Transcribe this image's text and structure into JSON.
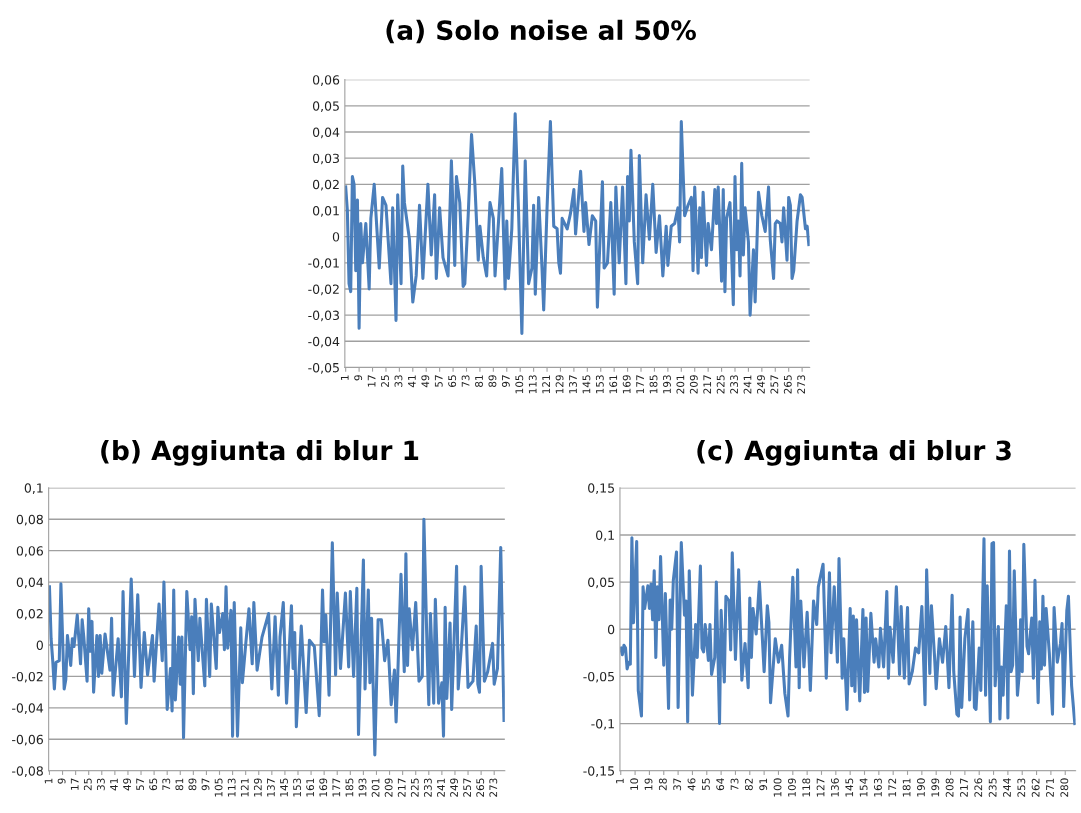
{
  "chart_data": [
    {
      "type": "line",
      "title": "(a) Solo noise al 50%",
      "color": "#4a7ebb",
      "grid": "y",
      "xlim": [
        0.5,
        277.5
      ],
      "xticks": [
        1,
        9,
        17,
        25,
        33,
        41,
        49,
        57,
        65,
        73,
        81,
        89,
        97,
        105,
        113,
        121,
        129,
        137,
        145,
        153,
        161,
        169,
        177,
        185,
        193,
        201,
        209,
        217,
        225,
        233,
        241,
        249,
        257,
        265,
        273
      ],
      "ylim": [
        -0.05,
        0.06
      ],
      "yticks": [
        {
          "value": 0.06,
          "label": "0,06"
        },
        {
          "value": 0.05,
          "label": "0,05"
        },
        {
          "value": 0.04,
          "label": "0,04"
        },
        {
          "value": 0.03,
          "label": "0,03"
        },
        {
          "value": 0.02,
          "label": "0,02"
        },
        {
          "value": 0.01,
          "label": "0,01"
        },
        {
          "value": 0,
          "label": "0"
        },
        {
          "value": -0.01,
          "label": "-0,01"
        },
        {
          "value": -0.02,
          "label": "-0,02"
        },
        {
          "value": -0.03,
          "label": "-0,03"
        },
        {
          "value": -0.04,
          "label": "-0,04"
        },
        {
          "value": -0.05,
          "label": "-0,05"
        }
      ],
      "x": [
        1,
        2,
        3,
        4,
        5,
        6,
        7,
        8,
        9,
        10,
        11,
        13,
        15,
        16,
        18,
        21,
        23,
        25,
        28,
        29,
        31,
        32,
        34,
        35,
        36,
        39,
        41,
        43,
        45,
        47,
        50,
        52,
        54,
        55,
        57,
        59,
        62,
        64,
        66,
        67,
        69,
        71,
        72,
        74,
        76,
        78,
        80,
        81,
        83,
        85,
        87,
        89,
        90,
        92,
        94,
        96,
        97,
        98,
        100,
        102,
        104,
        106,
        108,
        110,
        112,
        113,
        114,
        116,
        118,
        119,
        121,
        123,
        125,
        127,
        128,
        129,
        130,
        133,
        135,
        137,
        138,
        141,
        143,
        144,
        146,
        148,
        150,
        151,
        152,
        154,
        155,
        157,
        159,
        161,
        162,
        164,
        166,
        168,
        169,
        170,
        171,
        173,
        175,
        176,
        178,
        180,
        182,
        184,
        186,
        188,
        190,
        192,
        193,
        195,
        197,
        199,
        200,
        201,
        203,
        205,
        207,
        208,
        209,
        211,
        212,
        213,
        214,
        216,
        217,
        219,
        221,
        222,
        223,
        225,
        226,
        227,
        228,
        230,
        232,
        233,
        234,
        235,
        236,
        237,
        238,
        239,
        241,
        242,
        244,
        245,
        247,
        249,
        251,
        253,
        254,
        256,
        257,
        258,
        260,
        261,
        262,
        264,
        265,
        266,
        267,
        268,
        270,
        272,
        273,
        275,
        276,
        277
      ],
      "values": [
        0.019,
        0.01,
        -0.018,
        -0.021,
        0.023,
        0.02,
        -0.013,
        0.014,
        -0.035,
        0.005,
        -0.01,
        0.005,
        -0.02,
        0.007,
        0.02,
        -0.012,
        0.015,
        0.012,
        -0.018,
        0.011,
        -0.032,
        0.016,
        -0.018,
        0.027,
        0.013,
        -0.001,
        -0.025,
        -0.015,
        0.012,
        -0.016,
        0.02,
        -0.007,
        0.016,
        -0.016,
        0.011,
        -0.008,
        -0.015,
        0.029,
        -0.011,
        0.023,
        0.013,
        -0.019,
        -0.018,
        0.008,
        0.039,
        0.02,
        -0.009,
        0.004,
        -0.008,
        -0.015,
        0.013,
        0.007,
        -0.015,
        0.005,
        0.026,
        -0.02,
        0.006,
        -0.016,
        0.003,
        0.047,
        0.01,
        -0.037,
        0.029,
        -0.018,
        -0.012,
        0.012,
        -0.022,
        0.015,
        -0.012,
        -0.028,
        0.011,
        0.044,
        0.004,
        0.003,
        -0.01,
        -0.014,
        0.007,
        0.003,
        0.009,
        0.018,
        0.001,
        0.025,
        0.002,
        0.013,
        -0.003,
        0.008,
        0.006,
        -0.027,
        -0.01,
        0.021,
        -0.012,
        -0.01,
        0.013,
        -0.022,
        0.019,
        -0.01,
        0.019,
        -0.018,
        0.023,
        0.006,
        0.033,
        -0.002,
        -0.018,
        0.031,
        -0.01,
        0.016,
        -0.001,
        0.02,
        -0.006,
        0.008,
        -0.015,
        0.004,
        -0.011,
        0.004,
        0.005,
        0.011,
        -0.002,
        0.044,
        0.008,
        0.012,
        0.015,
        -0.013,
        0.019,
        -0.014,
        0.011,
        -0.008,
        0.017,
        -0.011,
        0.005,
        -0.005,
        0.018,
        0.005,
        0.019,
        -0.017,
        0.018,
        -0.021,
        0.007,
        0.013,
        -0.026,
        0.023,
        -0.005,
        0.006,
        -0.015,
        0.028,
        -0.007,
        0.011,
        -0.002,
        -0.03,
        -0.005,
        -0.025,
        0.017,
        0.008,
        0.002,
        0.019,
        -0.001,
        -0.016,
        0.005,
        0.006,
        0.005,
        -0.002,
        0.011,
        -0.009,
        0.015,
        0.012,
        -0.016,
        -0.013,
        0.006,
        0.016,
        0.015,
        0.003,
        0.004,
        -0.003
      ]
    },
    {
      "type": "line",
      "title": "(b) Aggiunta di blur 1",
      "color": "#4a7ebb",
      "grid": "y",
      "xlim": [
        0.5,
        279.5
      ],
      "xticks": [
        1,
        9,
        17,
        25,
        33,
        41,
        49,
        57,
        65,
        73,
        81,
        89,
        97,
        105,
        113,
        121,
        129,
        137,
        145,
        153,
        161,
        169,
        177,
        185,
        193,
        201,
        209,
        217,
        225,
        233,
        241,
        249,
        257,
        265,
        273
      ],
      "ylim": [
        -0.08,
        0.1
      ],
      "yticks": [
        {
          "value": 0.1,
          "label": "0,1"
        },
        {
          "value": 0.08,
          "label": "0,08"
        },
        {
          "value": 0.06,
          "label": "0,06"
        },
        {
          "value": 0.04,
          "label": "0,04"
        },
        {
          "value": 0.02,
          "label": "0,02"
        },
        {
          "value": 0,
          "label": "0"
        },
        {
          "value": -0.02,
          "label": "-0,02"
        },
        {
          "value": -0.04,
          "label": "-0,04"
        },
        {
          "value": -0.06,
          "label": "-0,06"
        },
        {
          "value": -0.08,
          "label": "-0,08"
        }
      ],
      "x": [
        1,
        2,
        3,
        4,
        5,
        7,
        8,
        10,
        11,
        12,
        14,
        15,
        16,
        18,
        20,
        21,
        22,
        24,
        25,
        26,
        27,
        28,
        30,
        31,
        32,
        33,
        35,
        38,
        39,
        40,
        43,
        45,
        46,
        48,
        51,
        53,
        55,
        57,
        59,
        61,
        64,
        65,
        68,
        70,
        71,
        73,
        75,
        76,
        77,
        78,
        80,
        81,
        82,
        83,
        85,
        87,
        88,
        89,
        90,
        92,
        93,
        96,
        97,
        99,
        100,
        103,
        104,
        105,
        107,
        108,
        109,
        110,
        112,
        113,
        114,
        116,
        118,
        119,
        121,
        123,
        125,
        126,
        128,
        131,
        135,
        137,
        139,
        141,
        142,
        144,
        146,
        149,
        150,
        151,
        152,
        155,
        158,
        160,
        163,
        166,
        168,
        169,
        170,
        172,
        174,
        176,
        177,
        179,
        182,
        184,
        185,
        187,
        189,
        190,
        193,
        194,
        196,
        197,
        198,
        200,
        202,
        204,
        206,
        208,
        210,
        212,
        213,
        214,
        216,
        218,
        219,
        220,
        221,
        223,
        225,
        227,
        229,
        230,
        232,
        233,
        234,
        236,
        237,
        239,
        241,
        242,
        243,
        244,
        246,
        247,
        250,
        251,
        253,
        255,
        257,
        260,
        262,
        263,
        264,
        265,
        267,
        269,
        272,
        273,
        275,
        277,
        279
      ],
      "values": [
        0.037,
        0.004,
        -0.01,
        -0.028,
        -0.011,
        -0.01,
        0.039,
        -0.028,
        -0.022,
        0.006,
        -0.013,
        0.004,
        -0.001,
        0.019,
        -0.012,
        0.016,
        0.005,
        -0.023,
        0.023,
        -0.004,
        0.015,
        -0.03,
        0.006,
        -0.02,
        0.006,
        -0.018,
        0.007,
        -0.016,
        0.017,
        -0.032,
        0.004,
        -0.033,
        0.034,
        -0.05,
        0.042,
        -0.02,
        0.032,
        -0.027,
        0.008,
        -0.019,
        0.006,
        -0.023,
        0.026,
        -0.01,
        0.04,
        -0.041,
        -0.015,
        -0.042,
        0.035,
        -0.035,
        0.005,
        -0.025,
        0.005,
        -0.059,
        0.034,
        -0.003,
        0.018,
        -0.031,
        0.029,
        -0.01,
        0.017,
        -0.026,
        0.029,
        -0.02,
        0.026,
        -0.015,
        0.024,
        0.008,
        0.02,
        -0.003,
        0.037,
        -0.002,
        0.022,
        -0.058,
        0.027,
        -0.058,
        0.011,
        -0.024,
        0,
        0.023,
        -0.012,
        0.027,
        -0.016,
        0.005,
        0.02,
        -0.028,
        0.018,
        -0.032,
        0.005,
        0.027,
        -0.037,
        0.025,
        -0.015,
        0.008,
        -0.052,
        0.012,
        -0.043,
        0.003,
        -0.001,
        -0.045,
        0.035,
        0.002,
        0.019,
        -0.032,
        0.065,
        -0.019,
        0.033,
        -0.015,
        0.033,
        -0.014,
        0.034,
        -0.02,
        0.036,
        -0.057,
        0.054,
        -0.028,
        0.035,
        -0.024,
        0.017,
        -0.07,
        0.016,
        0.016,
        -0.01,
        0.003,
        -0.038,
        -0.016,
        -0.049,
        -0.02,
        0.045,
        -0.017,
        0.058,
        -0.013,
        0.023,
        -0.003,
        0.027,
        -0.023,
        -0.02,
        0.08,
        -0.005,
        -0.038,
        0.02,
        -0.037,
        0.029,
        -0.037,
        -0.024,
        -0.058,
        0.024,
        -0.034,
        0.014,
        -0.041,
        0.05,
        -0.028,
        0,
        0.037,
        -0.027,
        -0.023,
        0.012,
        -0.025,
        -0.03,
        0.05,
        -0.023,
        -0.017,
        0.001,
        -0.025,
        -0.015,
        0.062,
        -0.048
      ]
    },
    {
      "type": "line",
      "title": "(c) Aggiunta di blur 3",
      "color": "#4a7ebb",
      "grid": "y",
      "xlim": [
        0.5,
        286.5
      ],
      "xticks": [
        1,
        10,
        19,
        28,
        37,
        46,
        55,
        64,
        73,
        82,
        91,
        100,
        109,
        118,
        127,
        136,
        145,
        154,
        163,
        172,
        181,
        190,
        199,
        208,
        217,
        226,
        235,
        244,
        253,
        262,
        271,
        280
      ],
      "ylim": [
        -0.15,
        0.15
      ],
      "yticks": [
        {
          "value": 0.15,
          "label": "0,15"
        },
        {
          "value": 0.1,
          "label": "0,1"
        },
        {
          "value": 0.05,
          "label": "0,05"
        },
        {
          "value": 0,
          "label": "0"
        },
        {
          "value": -0.05,
          "label": "-0,05"
        },
        {
          "value": -0.1,
          "label": "-0,1"
        },
        {
          "value": -0.15,
          "label": "-0,15"
        }
      ],
      "x": [
        1,
        2,
        3,
        4,
        5,
        6,
        7,
        8,
        9,
        11,
        12,
        14,
        15,
        16,
        18,
        19,
        20,
        21,
        22,
        23,
        24,
        25,
        26,
        28,
        29,
        31,
        32,
        33,
        34,
        36,
        37,
        39,
        41,
        42,
        43,
        44,
        46,
        48,
        49,
        51,
        52,
        53,
        54,
        56,
        57,
        58,
        60,
        61,
        63,
        64,
        66,
        67,
        69,
        70,
        71,
        73,
        75,
        77,
        79,
        81,
        82,
        83,
        84,
        86,
        88,
        91,
        93,
        94,
        95,
        98,
        100,
        102,
        104,
        106,
        107,
        109,
        111,
        112,
        113,
        114,
        116,
        118,
        119,
        120,
        122,
        124,
        125,
        128,
        130,
        132,
        133,
        135,
        137,
        138,
        140,
        141,
        143,
        145,
        146,
        147,
        148,
        149,
        151,
        153,
        154,
        155,
        156,
        158,
        160,
        161,
        163,
        164,
        166,
        168,
        169,
        170,
        172,
        174,
        176,
        177,
        179,
        181,
        182,
        184,
        186,
        188,
        190,
        192,
        193,
        195,
        196,
        198,
        199,
        201,
        203,
        205,
        207,
        209,
        210,
        212,
        213,
        214,
        215,
        217,
        219,
        220,
        222,
        223,
        224,
        226,
        227,
        229,
        230,
        231,
        233,
        234,
        235,
        236,
        238,
        239,
        240,
        241,
        243,
        244,
        245,
        246,
        247,
        248,
        250,
        251,
        252,
        253,
        254,
        256,
        257,
        259,
        260,
        261,
        263,
        264,
        265,
        266,
        267,
        268,
        270,
        272,
        273,
        275,
        277,
        278,
        279,
        281,
        282,
        284,
        286
      ],
      "values": [
        -0.02,
        -0.027,
        -0.017,
        -0.02,
        -0.042,
        -0.035,
        -0.037,
        0.097,
        0.007,
        0.093,
        -0.065,
        -0.092,
        0.045,
        0.022,
        0.046,
        0.022,
        0.048,
        0.01,
        0.062,
        -0.03,
        0.045,
        0.01,
        0.077,
        -0.038,
        0.038,
        -0.084,
        0.031,
        0,
        0.052,
        0.082,
        -0.083,
        0.092,
        0.015,
        0.03,
        -0.098,
        0.062,
        -0.07,
        0.005,
        -0.03,
        0.067,
        -0.02,
        -0.024,
        0.005,
        -0.033,
        0.005,
        -0.048,
        -0.03,
        0.05,
        -0.1,
        0.02,
        -0.056,
        0.035,
        0.03,
        -0.022,
        0.081,
        -0.032,
        0.063,
        -0.054,
        -0.015,
        -0.062,
        0.033,
        -0.03,
        0.022,
        -0.005,
        0.05,
        -0.045,
        0.025,
        0.007,
        -0.078,
        -0.01,
        -0.035,
        -0.017,
        -0.068,
        -0.092,
        -0.03,
        0.055,
        -0.04,
        0.063,
        -0.062,
        0.03,
        -0.04,
        0.018,
        -0.02,
        -0.065,
        0.03,
        0.005,
        0.045,
        0.069,
        -0.052,
        0.06,
        -0.025,
        0.045,
        -0.035,
        0.075,
        -0.052,
        -0.01,
        -0.085,
        0.022,
        -0.06,
        0.014,
        -0.066,
        0.01,
        -0.076,
        0.021,
        -0.067,
        0.012,
        -0.066,
        0.017,
        -0.035,
        -0.01,
        -0.04,
        0.001,
        -0.04,
        0.04,
        -0.052,
        0.002,
        -0.035,
        0.045,
        -0.048,
        0.024,
        -0.052,
        0.023,
        -0.058,
        -0.045,
        -0.02,
        -0.025,
        0.024,
        -0.08,
        0.063,
        -0.047,
        0.025,
        -0.03,
        -0.063,
        -0.01,
        -0.035,
        0.003,
        -0.062,
        0.036,
        -0.045,
        -0.09,
        -0.092,
        0.013,
        -0.083,
        -0.01,
        0.021,
        -0.075,
        0.008,
        -0.083,
        -0.085,
        -0.02,
        -0.065,
        0.096,
        -0.07,
        0.046,
        -0.098,
        0.091,
        0.092,
        -0.06,
        0.003,
        -0.095,
        -0.04,
        -0.07,
        0.025,
        -0.094,
        0.083,
        -0.045,
        -0.038,
        0.062,
        -0.07,
        -0.05,
        0.01,
        -0.045,
        0.09,
        -0.018,
        -0.026,
        0.012,
        -0.052,
        0.052,
        -0.078,
        0.008,
        -0.042,
        0.035,
        -0.038,
        0.022,
        -0.025,
        -0.09,
        0.023,
        -0.035,
        -0.015,
        0.006,
        -0.082,
        0.02,
        0.035,
        -0.06,
        -0.1
      ]
    }
  ]
}
